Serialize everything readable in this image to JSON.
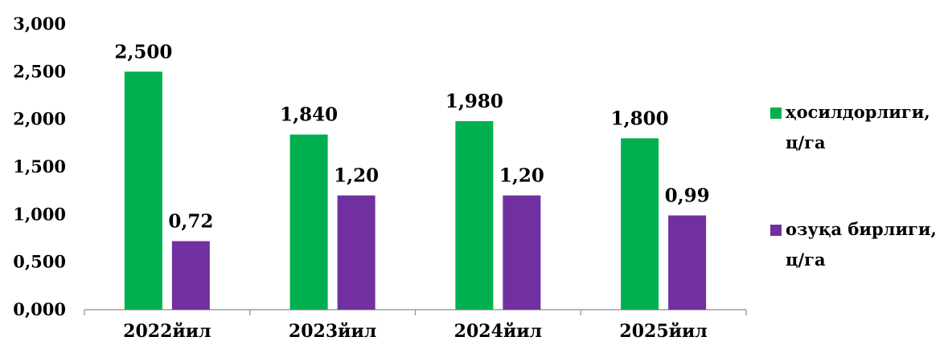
{
  "chart_data": {
    "type": "bar",
    "categories": [
      "2022йил",
      "2023йил",
      "2024йил",
      "2025йил"
    ],
    "series": [
      {
        "name": "ҳосилдорлиги, ц/га",
        "legend_lines": [
          "ҳосилдорлиги,",
          "ц/га"
        ],
        "color": "#00B050",
        "values": [
          2.5,
          1.84,
          1.98,
          1.8
        ],
        "labels": [
          "2,500",
          "1,840",
          "1,980",
          "1,800"
        ]
      },
      {
        "name": "озуқа бирлиги, ц/га",
        "legend_lines": [
          "озуқа бирлиги,",
          "ц/га"
        ],
        "color": "#7030A0",
        "values": [
          0.72,
          1.2,
          1.2,
          0.99
        ],
        "labels": [
          "0,72",
          "1,20",
          "1,20",
          "0,99"
        ]
      }
    ],
    "yticks": [
      "0,000",
      "0,500",
      "1,000",
      "1,500",
      "2,000",
      "2,500",
      "3,000"
    ],
    "ylim": [
      0,
      3
    ],
    "title": "",
    "xlabel": "",
    "ylabel": "",
    "grid": false,
    "legend_position": "right"
  }
}
